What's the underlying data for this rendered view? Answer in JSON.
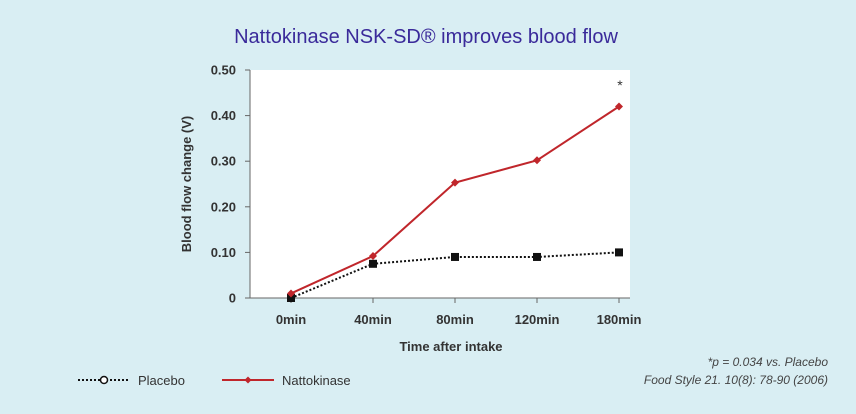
{
  "chart_data": {
    "type": "line",
    "title": "Nattokinase NSK-SD® improves blood flow",
    "xlabel": "Time after intake",
    "ylabel": "Blood flow change (V)",
    "categories": [
      "0min",
      "40min",
      "80min",
      "120min",
      "180min"
    ],
    "ylim": [
      0,
      0.5
    ],
    "yticks": [
      0,
      0.1,
      0.2,
      0.3,
      0.4,
      0.5
    ],
    "ytick_labels": [
      "0",
      "0.10",
      "0.20",
      "0.30",
      "0.40",
      "0.50"
    ],
    "grid": false,
    "legend_position": "bottom-left",
    "series": [
      {
        "name": "Placebo",
        "values": [
          0.0,
          0.075,
          0.09,
          0.09,
          0.1
        ],
        "color": "#111111",
        "line": "dotted",
        "marker": "square",
        "legend_marker": "circle-open"
      },
      {
        "name": "Nattokinase",
        "values": [
          0.01,
          0.092,
          0.253,
          0.302,
          0.42
        ],
        "color": "#c0262b",
        "line": "solid",
        "marker": "diamond"
      }
    ],
    "annotation": "*",
    "footnote": "*p = 0.034 vs. Placebo",
    "source": "Food Style 21. 10(8): 78-90 (2006)"
  },
  "colors": {
    "background": "#d9eef3",
    "plot_background": "#ffffff",
    "title": "#3a2a9a"
  }
}
